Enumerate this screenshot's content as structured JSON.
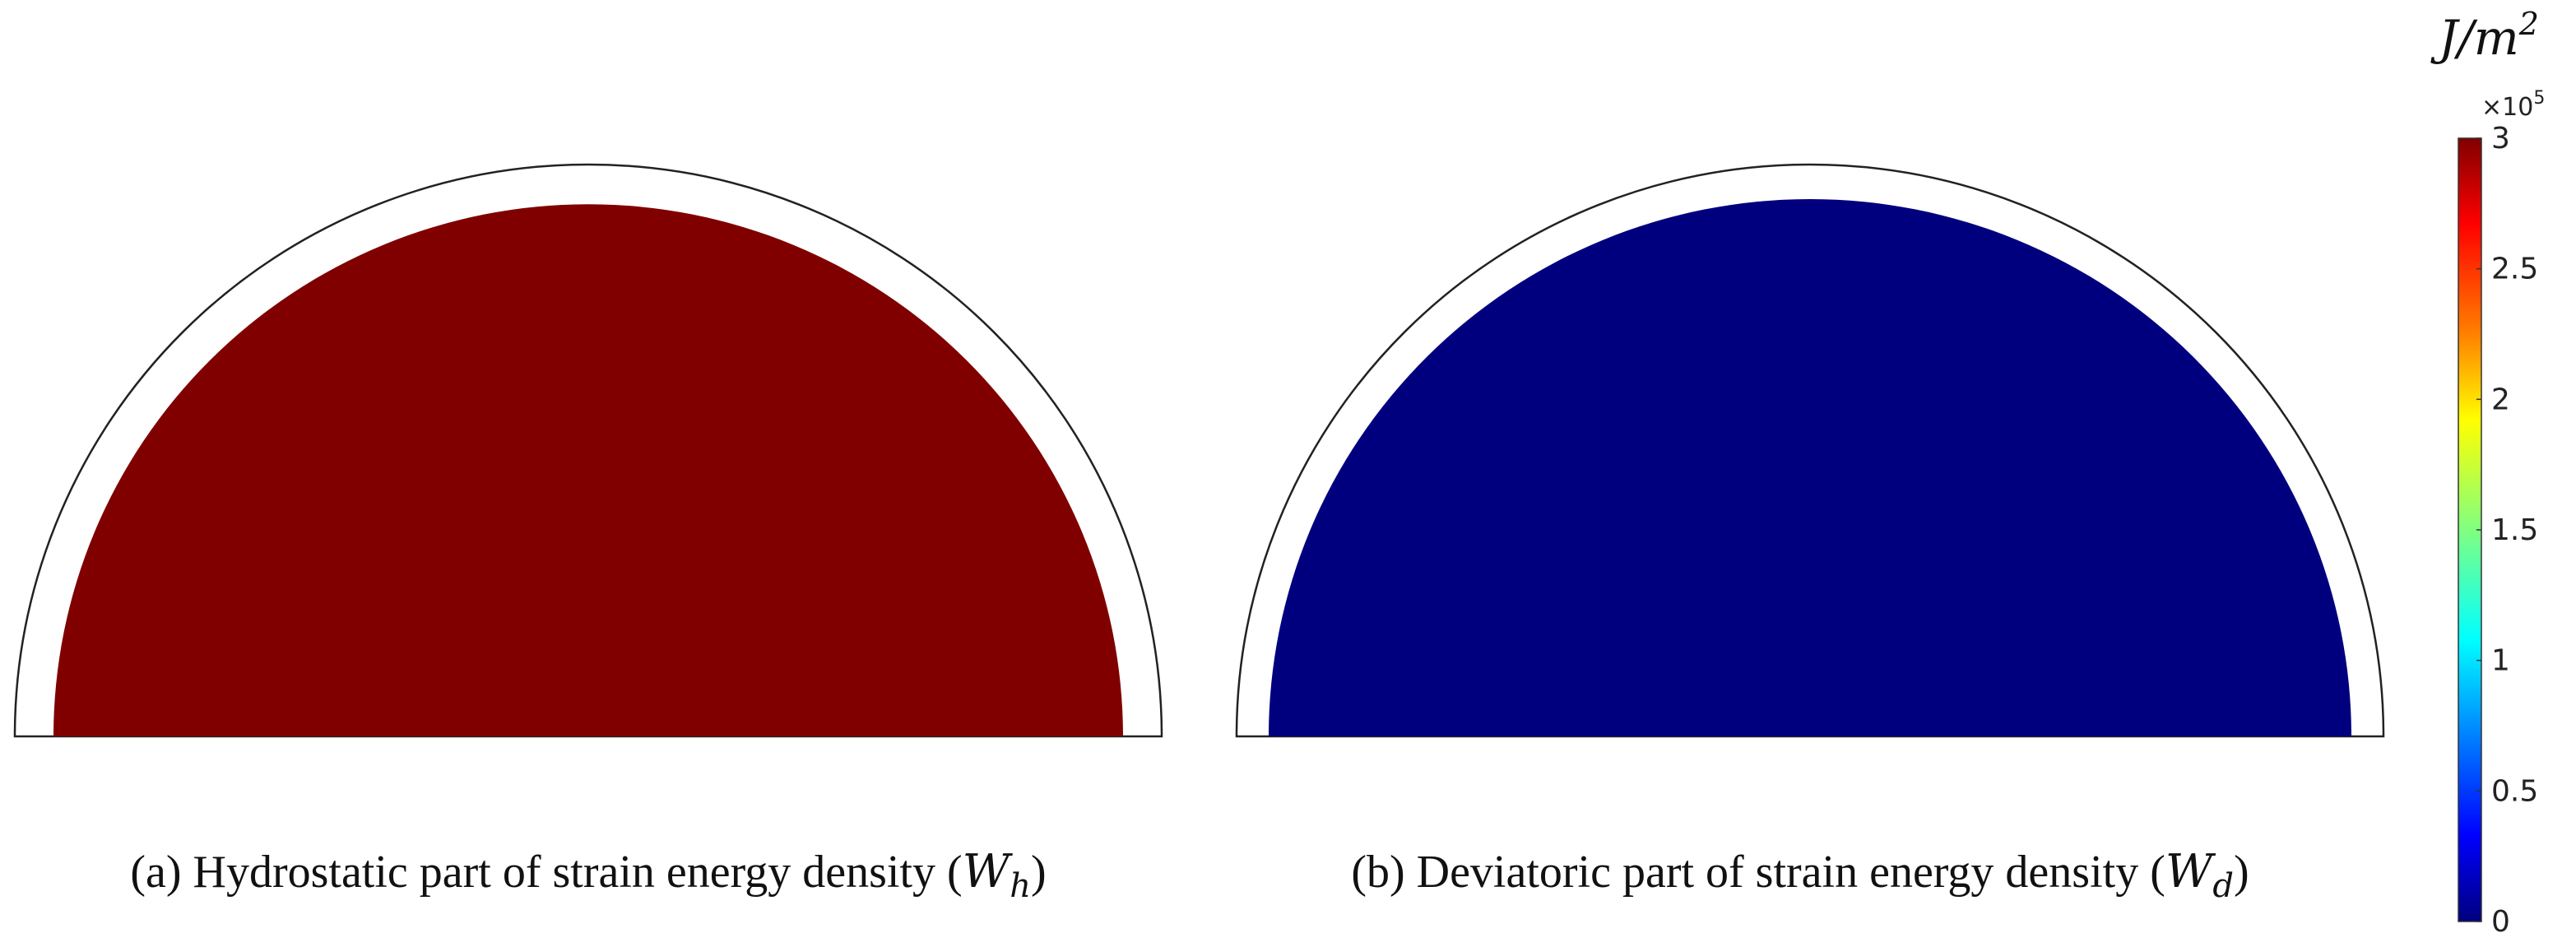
{
  "panels": [
    {
      "id": "a",
      "caption_prefix": "(a) Hydrostatic part of strain energy density (",
      "symbol": "W",
      "subscript": "h",
      "caption_suffix": ")",
      "fill_color": "#800000",
      "value": 3
    },
    {
      "id": "b",
      "caption_prefix": "(b) Deviatoric part of strain energy density (",
      "symbol": "W",
      "subscript": "d",
      "caption_suffix": ")",
      "fill_color": "#00007f",
      "value": 0
    }
  ],
  "colorbar": {
    "unit_base": "J/m",
    "unit_exponent": "2",
    "multiplier_base": "×10",
    "multiplier_exponent": "5",
    "ticks": [
      "3",
      "2.5",
      "2",
      "1.5",
      "1",
      "0.5",
      "0"
    ],
    "range": [
      0,
      3
    ],
    "colormap": "jet",
    "colors": {
      "top": "#800000",
      "red": "#ff0000",
      "orange": "#ff8000",
      "yellow": "#ffff00",
      "green": "#80ff80",
      "cyan": "#00ffff",
      "blue": "#0000ff",
      "bottom": "#00007f"
    }
  }
}
